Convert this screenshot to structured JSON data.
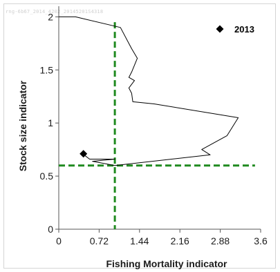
{
  "watermark": "rng-6b67_2014_4202_20145201S4318",
  "chart_data": {
    "type": "line",
    "xlabel": "Fishing Mortality indicator",
    "ylabel": "Stock size indicator",
    "xlim": [
      0,
      3.6
    ],
    "ylim": [
      0,
      2.1
    ],
    "x_ticks": [
      "0",
      "0.72",
      "1.44",
      "2.16",
      "2.88",
      "3.6"
    ],
    "y_ticks": [
      "0",
      "0.5",
      "1",
      "1.5",
      "2"
    ],
    "grid": false,
    "legend": {
      "position": "top-right",
      "entries": [
        "2013"
      ]
    },
    "series": [
      {
        "kind": "trajectory",
        "color": "#000000",
        "points": [
          [
            0,
            2.0
          ],
          [
            0.3,
            2.0
          ],
          [
            1.1,
            1.9
          ],
          [
            1.3,
            1.7
          ],
          [
            1.4,
            1.61
          ],
          [
            1.3,
            1.48
          ],
          [
            1.25,
            1.43
          ],
          [
            1.35,
            1.4
          ],
          [
            1.25,
            1.33
          ],
          [
            1.3,
            1.28
          ],
          [
            1.32,
            1.2
          ],
          [
            1.7,
            1.18
          ],
          [
            3.2,
            1.05
          ],
          [
            3.0,
            0.88
          ],
          [
            2.55,
            0.75
          ],
          [
            2.7,
            0.7
          ],
          [
            1.0,
            0.6
          ],
          [
            0.6,
            0.64
          ],
          [
            1.0,
            0.66
          ],
          [
            0.55,
            0.66
          ],
          [
            0.45,
            0.7
          ]
        ]
      },
      {
        "name": "2013",
        "kind": "marker",
        "marker": "diamond",
        "color": "#000000",
        "points": [
          [
            0.44,
            0.71
          ]
        ]
      }
    ],
    "reference_lines": [
      {
        "orientation": "vertical",
        "value": 1.0,
        "color": "#1f8a1f",
        "style": "dashed"
      },
      {
        "orientation": "horizontal",
        "value": 0.6,
        "color": "#1f8a1f",
        "style": "dashed"
      }
    ]
  }
}
